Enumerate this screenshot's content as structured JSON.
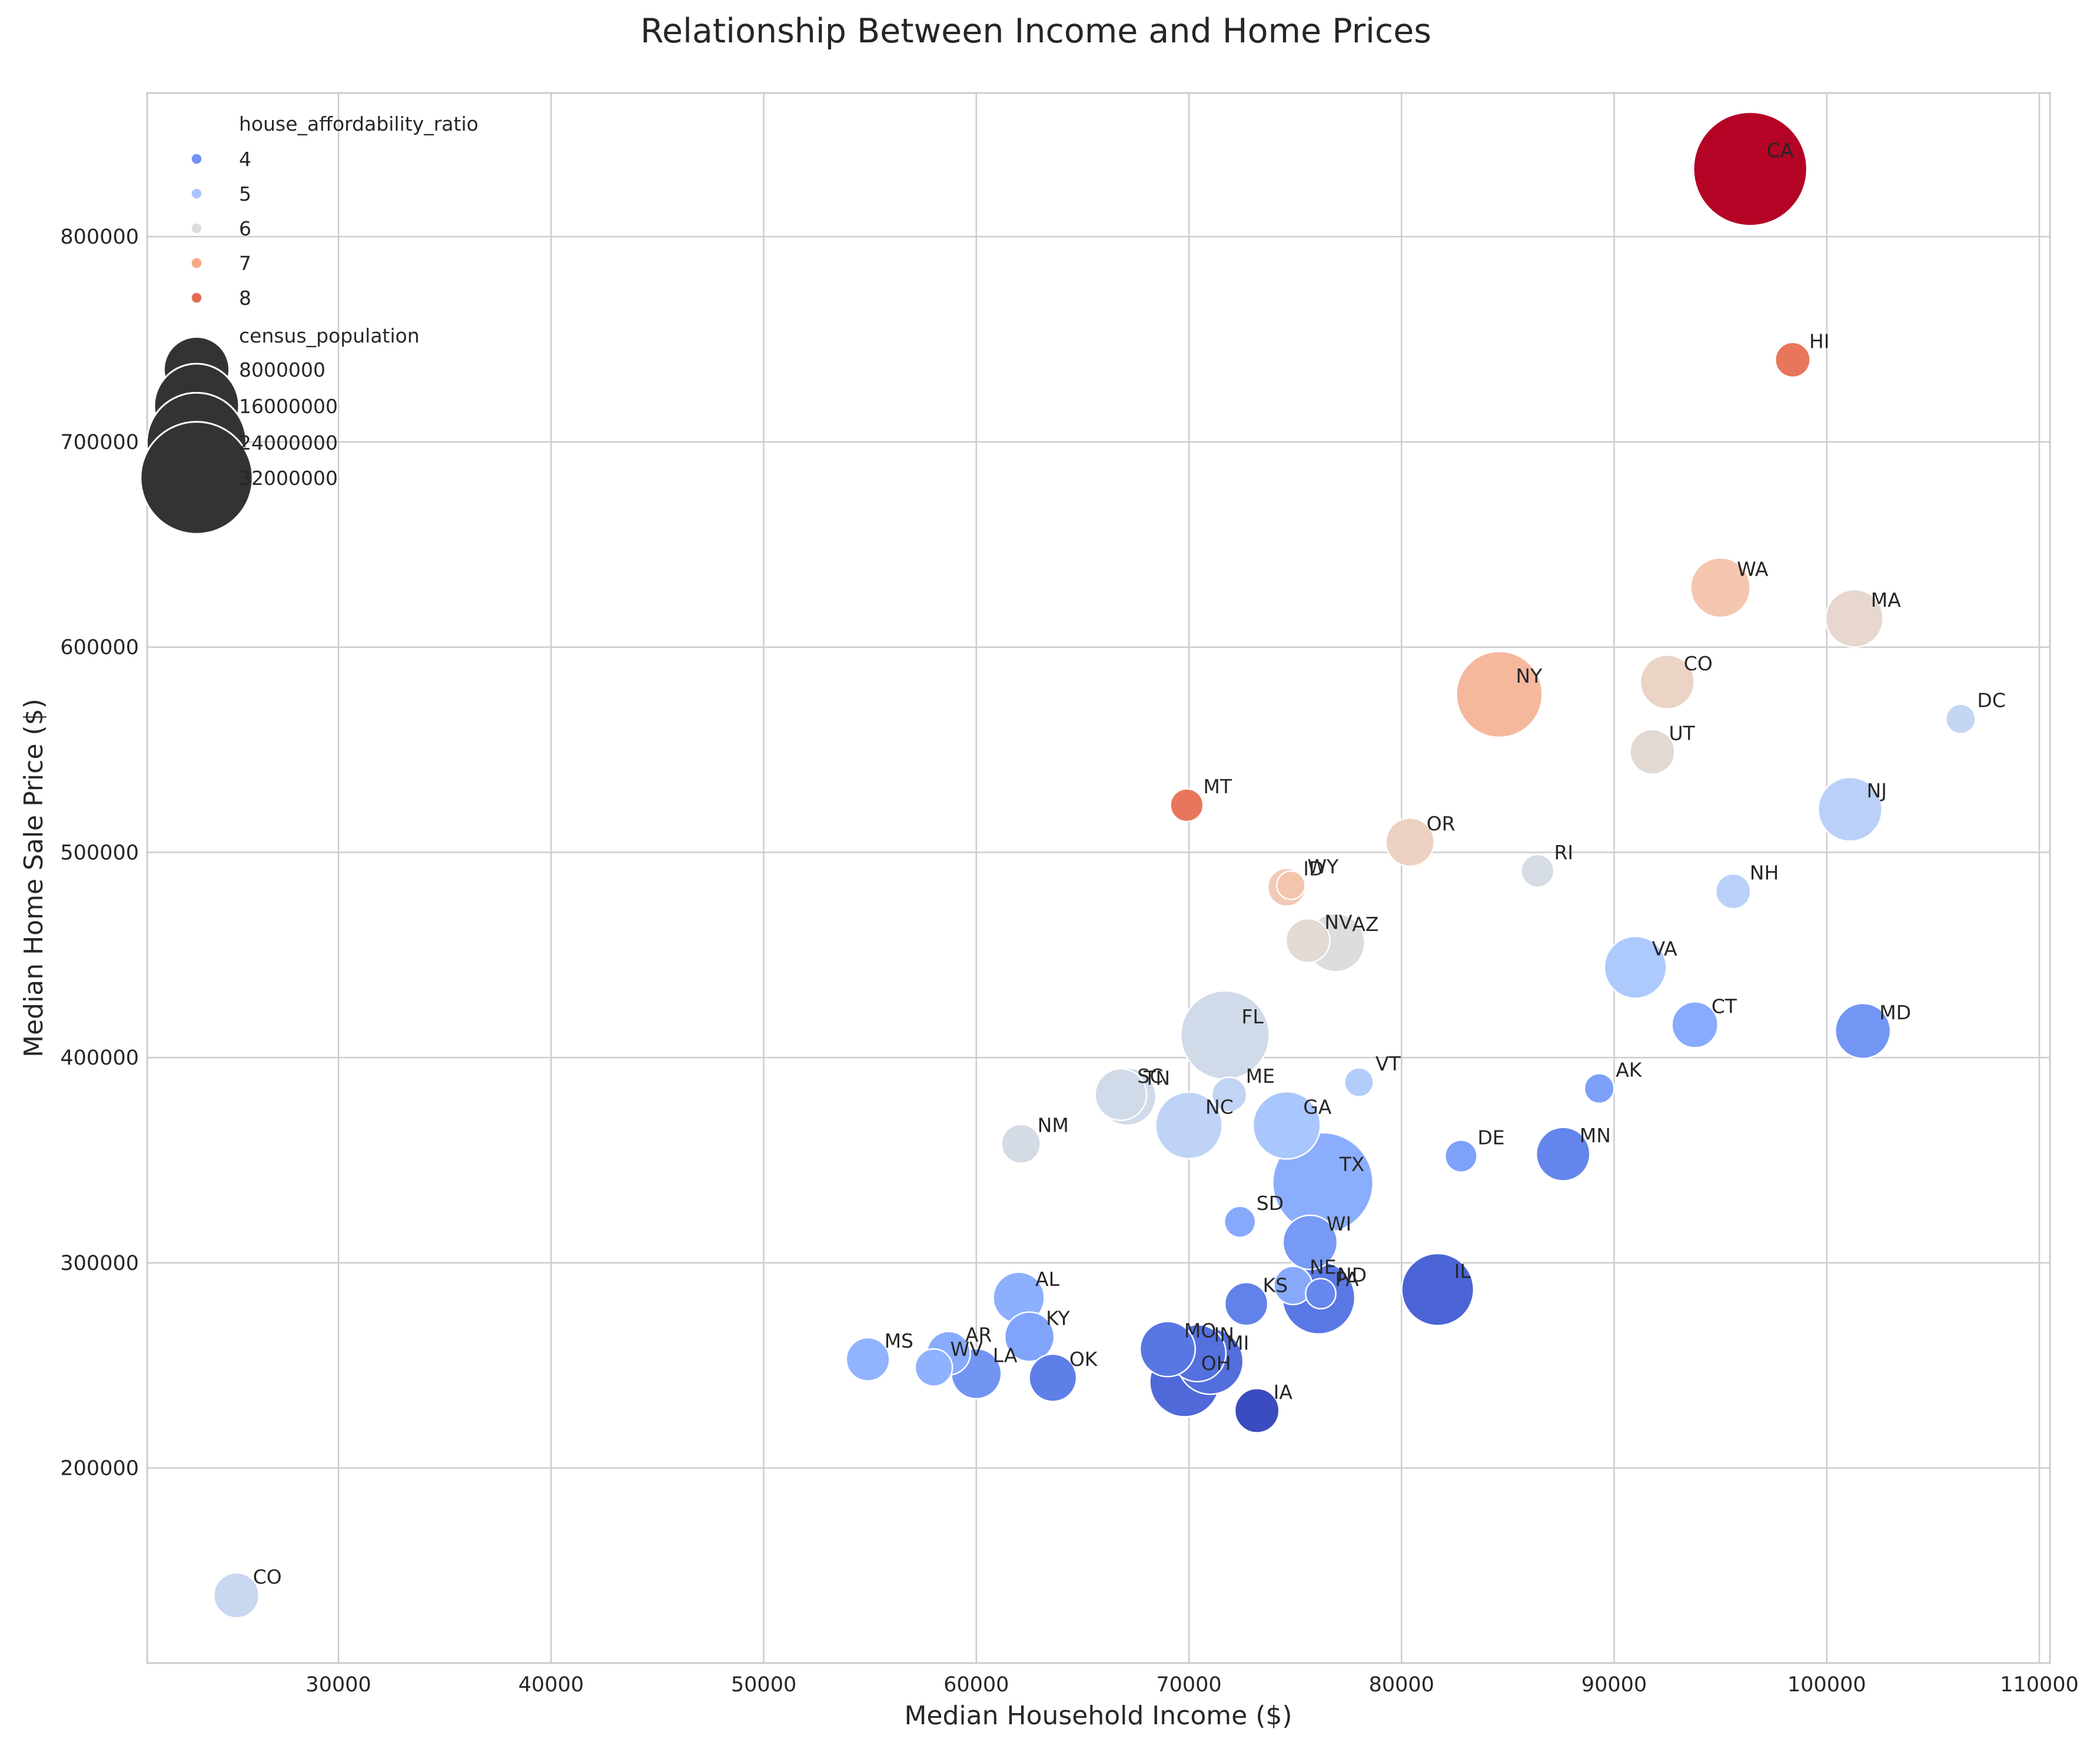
{
  "chart_data": {
    "type": "scatter",
    "title": "Relationship Between Income and Home Prices",
    "xlabel": "Median Household Income ($)",
    "ylabel": "Median Home Sale Price ($)",
    "xlim": [
      21000,
      110500
    ],
    "ylim": [
      105000,
      870000
    ],
    "xticks": [
      30000,
      40000,
      50000,
      60000,
      70000,
      80000,
      90000,
      100000,
      110000
    ],
    "yticks": [
      200000,
      300000,
      400000,
      500000,
      600000,
      700000,
      800000
    ],
    "grid": true,
    "legend_position": "top-left",
    "hue_variable": "house_affordability_ratio",
    "size_variable": "census_population",
    "hue_legend": [
      {
        "label": "4",
        "color": "#6f92f3"
      },
      {
        "label": "5",
        "color": "#aac7fd"
      },
      {
        "label": "6",
        "color": "#dddcdc"
      },
      {
        "label": "7",
        "color": "#f7a889"
      },
      {
        "label": "8",
        "color": "#e36c55"
      }
    ],
    "size_legend": [
      {
        "label": "8000000",
        "value": 8000000
      },
      {
        "label": "16000000",
        "value": 16000000
      },
      {
        "label": "24000000",
        "value": 24000000
      },
      {
        "label": "32000000",
        "value": 32000000
      }
    ],
    "points": [
      {
        "label": "CA",
        "x": 96400,
        "y": 833000,
        "population": 39000000,
        "color": "#b40426"
      },
      {
        "label": "HI",
        "x": 98400,
        "y": 740000,
        "population": 1400000,
        "color": "#e8765c"
      },
      {
        "label": "WA",
        "x": 95000,
        "y": 629000,
        "population": 7700000,
        "color": "#f4c6af"
      },
      {
        "label": "MA",
        "x": 101300,
        "y": 614000,
        "population": 7000000,
        "color": "#e7d7ce"
      },
      {
        "label": "NY",
        "x": 84600,
        "y": 577000,
        "population": 20000000,
        "color": "#f5b89d"
      },
      {
        "label": "CO",
        "x": 92500,
        "y": 583000,
        "population": 5800000,
        "color": "#ebd3c6"
      },
      {
        "label": "DC",
        "x": 106300,
        "y": 565000,
        "population": 700000,
        "color": "#c5d6f2"
      },
      {
        "label": "UT",
        "x": 91800,
        "y": 549000,
        "population": 3300000,
        "color": "#e3d9d3"
      },
      {
        "label": "MT",
        "x": 69900,
        "y": 523000,
        "population": 1100000,
        "color": "#e8765c"
      },
      {
        "label": "NJ",
        "x": 101100,
        "y": 521000,
        "population": 9300000,
        "color": "#bad0f8"
      },
      {
        "label": "OR",
        "x": 80400,
        "y": 505000,
        "population": 4200000,
        "color": "#edd2c3"
      },
      {
        "label": "RI",
        "x": 86400,
        "y": 491000,
        "population": 1100000,
        "color": "#d6dce4"
      },
      {
        "label": "ID",
        "x": 74600,
        "y": 483000,
        "population": 1900000,
        "color": "#f2c9b4"
      },
      {
        "label": "WY",
        "x": 74800,
        "y": 484000,
        "population": 580000,
        "color": "#f4c5ad"
      },
      {
        "label": "NH",
        "x": 95600,
        "y": 481000,
        "population": 1400000,
        "color": "#b9d0f9"
      },
      {
        "label": "NV",
        "x": 75600,
        "y": 457000,
        "population": 3100000,
        "color": "#e2dad5"
      },
      {
        "label": "AZ",
        "x": 76900,
        "y": 456000,
        "population": 7200000,
        "color": "#dcdddd"
      },
      {
        "label": "VA",
        "x": 91000,
        "y": 444000,
        "population": 8600000,
        "color": "#aec9fc"
      },
      {
        "label": "CT",
        "x": 93800,
        "y": 416000,
        "population": 3600000,
        "color": "#88abfd"
      },
      {
        "label": "MD",
        "x": 101700,
        "y": 413000,
        "population": 6200000,
        "color": "#7396f5"
      },
      {
        "label": "FL",
        "x": 71700,
        "y": 411000,
        "population": 21500000,
        "color": "#d1dae9"
      },
      {
        "label": "VT",
        "x": 78000,
        "y": 388000,
        "population": 640000,
        "color": "#b2ccfb"
      },
      {
        "label": "AK",
        "x": 89300,
        "y": 385000,
        "population": 730000,
        "color": "#7da0f9"
      },
      {
        "label": "ME",
        "x": 71900,
        "y": 382000,
        "population": 1360000,
        "color": "#c1d4f4"
      },
      {
        "label": "SC",
        "x": 66800,
        "y": 382000,
        "population": 5100000,
        "color": "#d1dae9"
      },
      {
        "label": "TN",
        "x": 67100,
        "y": 381000,
        "population": 6900000,
        "color": "#d0dae9"
      },
      {
        "label": "GA",
        "x": 74600,
        "y": 367000,
        "population": 10700000,
        "color": "#a9c6fd"
      },
      {
        "label": "NC",
        "x": 70000,
        "y": 367000,
        "population": 10400000,
        "color": "#bfd3f6"
      },
      {
        "label": "NM",
        "x": 62100,
        "y": 358000,
        "population": 2100000,
        "color": "#d5dbe5"
      },
      {
        "label": "DE",
        "x": 82800,
        "y": 352000,
        "population": 990000,
        "color": "#7ea1fa"
      },
      {
        "label": "MN",
        "x": 87600,
        "y": 353000,
        "population": 5700000,
        "color": "#6485ec"
      },
      {
        "label": "TX",
        "x": 76300,
        "y": 339000,
        "population": 29100000,
        "color": "#8badfd"
      },
      {
        "label": "SD",
        "x": 72400,
        "y": 320000,
        "population": 890000,
        "color": "#86a9fc"
      },
      {
        "label": "WI",
        "x": 75700,
        "y": 310000,
        "population": 5900000,
        "color": "#779af7"
      },
      {
        "label": "IL",
        "x": 81700,
        "y": 287000,
        "population": 12800000,
        "color": "#4b64d5"
      },
      {
        "label": "NE",
        "x": 74900,
        "y": 289000,
        "population": 1960000,
        "color": "#86a9fc"
      },
      {
        "label": "PA",
        "x": 76100,
        "y": 283000,
        "population": 13000000,
        "color": "#5a78e4"
      },
      {
        "label": "ND",
        "x": 76200,
        "y": 285000,
        "population": 780000,
        "color": "#6687ed"
      },
      {
        "label": "AL",
        "x": 62000,
        "y": 283000,
        "population": 5000000,
        "color": "#8caffe"
      },
      {
        "label": "KS",
        "x": 72700,
        "y": 280000,
        "population": 2900000,
        "color": "#6282ea"
      },
      {
        "label": "KY",
        "x": 62500,
        "y": 264000,
        "population": 4500000,
        "color": "#81a4fb"
      },
      {
        "label": "MO",
        "x": 69000,
        "y": 258000,
        "population": 6200000,
        "color": "#5977e3"
      },
      {
        "label": "IN",
        "x": 70400,
        "y": 256000,
        "population": 6800000,
        "color": "#5470de"
      },
      {
        "label": "AR",
        "x": 58700,
        "y": 256000,
        "population": 3000000,
        "color": "#88abfd"
      },
      {
        "label": "MI",
        "x": 71000,
        "y": 252000,
        "population": 10100000,
        "color": "#536edd"
      },
      {
        "label": "MS",
        "x": 54900,
        "y": 253000,
        "population": 2960000,
        "color": "#92b4fe"
      },
      {
        "label": "WV",
        "x": 58000,
        "y": 249000,
        "population": 1790000,
        "color": "#8fb1fe"
      },
      {
        "label": "LA",
        "x": 60000,
        "y": 246000,
        "population": 4650000,
        "color": "#7295f4"
      },
      {
        "label": "OK",
        "x": 63600,
        "y": 244000,
        "population": 3960000,
        "color": "#5f7fe8"
      },
      {
        "label": "OH",
        "x": 69800,
        "y": 242000,
        "population": 11800000,
        "color": "#4f69d9"
      },
      {
        "label": "IA",
        "x": 73200,
        "y": 228000,
        "population": 3200000,
        "color": "#3b4cc0"
      },
      {
        "label": "CO",
        "x": 25200,
        "y": 138000,
        "population": 3400000,
        "color": "#c9d7f0"
      }
    ]
  }
}
